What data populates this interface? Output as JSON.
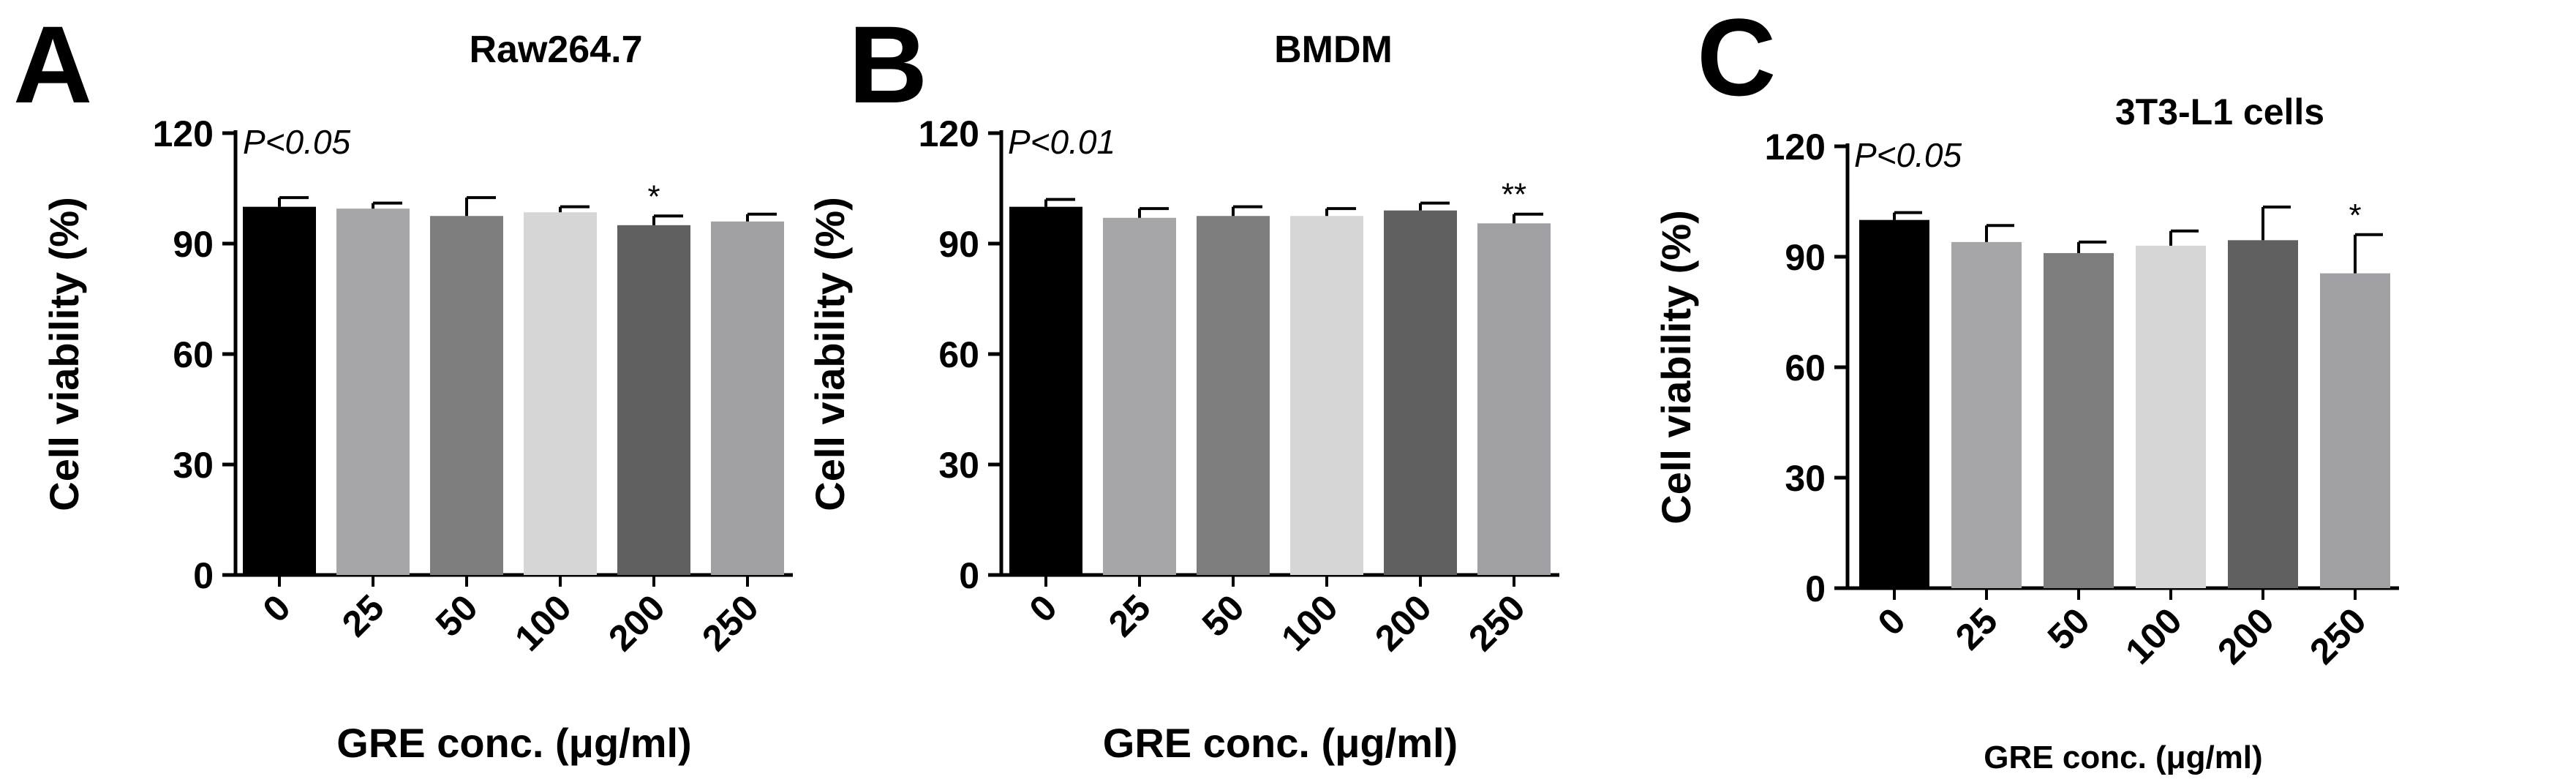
{
  "chart_data": [
    {
      "panel_letter": "A",
      "type": "bar",
      "title": "Raw264.7",
      "xlabel": "GRE conc. (μg/ml)",
      "ylabel": "Cell viability (%)",
      "categories": [
        "0",
        "25",
        "50",
        "100",
        "200",
        "250"
      ],
      "values": [
        100,
        99.5,
        97.5,
        98.5,
        95,
        96
      ],
      "errors": [
        2.5,
        1.5,
        5,
        1.5,
        2.5,
        2
      ],
      "significance": [
        "",
        "",
        "",
        "",
        "*",
        ""
      ],
      "colors": [
        "#000000",
        "#a6a6a8",
        "#7d7d7d",
        "#d6d6d6",
        "#606060",
        "#a0a0a4"
      ],
      "ylim": [
        0,
        120
      ],
      "yticks": [
        0,
        30,
        60,
        90,
        120
      ],
      "pvalue": "P<0.05",
      "grid": false,
      "legend": "none"
    },
    {
      "panel_letter": "B",
      "type": "bar",
      "title": "BMDM",
      "xlabel": "GRE conc. (μg/ml)",
      "ylabel": "Cell viability (%)",
      "categories": [
        "0",
        "25",
        "50",
        "100",
        "200",
        "250"
      ],
      "values": [
        100,
        97,
        97.5,
        97.5,
        99,
        95.5
      ],
      "errors": [
        2,
        2.5,
        2.5,
        2,
        2,
        2.5
      ],
      "significance": [
        "",
        "",
        "",
        "",
        "",
        "**"
      ],
      "colors": [
        "#000000",
        "#a6a6a8",
        "#7d7d7d",
        "#d6d6d6",
        "#606060",
        "#a0a0a4"
      ],
      "ylim": [
        0,
        120
      ],
      "yticks": [
        0,
        30,
        60,
        90,
        120
      ],
      "pvalue": "P<0.01",
      "grid": false,
      "legend": "none"
    },
    {
      "panel_letter": "C",
      "type": "bar",
      "title": "3T3-L1 cells",
      "xlabel": "GRE conc. (μg/ml)",
      "ylabel": "Cell viability (%)",
      "categories": [
        "0",
        "25",
        "50",
        "100",
        "200",
        "250"
      ],
      "values": [
        100,
        94,
        91,
        93,
        94.5,
        85.5
      ],
      "errors": [
        2,
        4.5,
        3,
        4,
        9,
        10.5
      ],
      "significance": [
        "",
        "",
        "",
        "",
        "",
        "*"
      ],
      "colors": [
        "#000000",
        "#a6a6a8",
        "#7d7d7d",
        "#d6d6d6",
        "#606060",
        "#a0a0a4"
      ],
      "ylim": [
        0,
        120
      ],
      "yticks": [
        0,
        30,
        60,
        90,
        120
      ],
      "pvalue": "P<0.05",
      "grid": false,
      "legend": "none"
    }
  ]
}
